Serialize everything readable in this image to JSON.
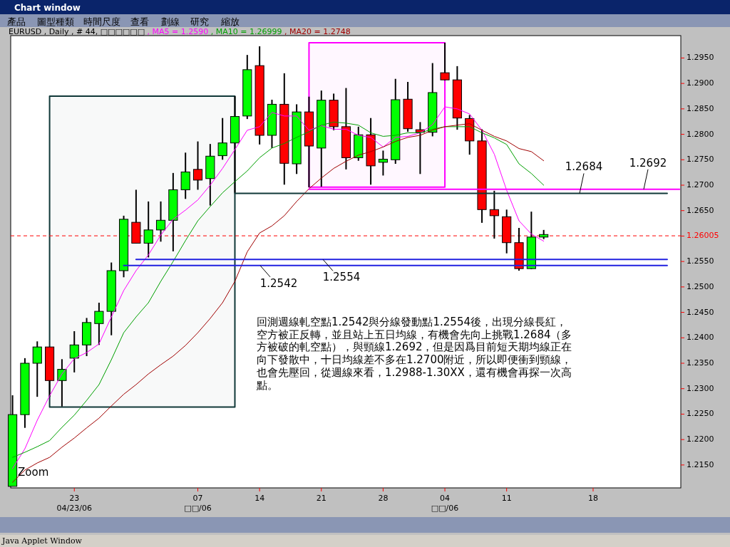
{
  "chart_data": {
    "type": "candlestick",
    "title": "EURUSD , Daily , # 44, □□□□□□",
    "legend": "top",
    "categories": [
      null,
      null,
      null,
      null,
      null,
      "23\n04/23/06",
      null,
      null,
      null,
      null,
      null,
      null,
      null,
      null,
      null,
      "07\n□□/06",
      null,
      null,
      null,
      null,
      "14",
      null,
      null,
      null,
      null,
      "21",
      null,
      null,
      null,
      null,
      "28",
      null,
      null,
      null,
      null,
      "04\n□□/06",
      null,
      null,
      null,
      null,
      "11",
      null,
      null,
      null,
      null,
      null,
      null,
      "18",
      null,
      null,
      null,
      null,
      null,
      null,
      null
    ],
    "ohlc": [
      [
        1.2108,
        1.2287,
        1.2108,
        1.2249
      ],
      [
        1.2249,
        1.236,
        1.2223,
        1.235
      ],
      [
        1.235,
        1.2393,
        1.2284,
        1.2382
      ],
      [
        1.2382,
        1.2382,
        1.2284,
        1.2316
      ],
      [
        1.2316,
        1.2358,
        1.2265,
        1.2338
      ],
      [
        1.236,
        1.2413,
        1.2332,
        1.2386
      ],
      [
        1.2386,
        1.2439,
        1.2364,
        1.243
      ],
      [
        1.2428,
        1.2469,
        1.2386,
        1.2452
      ],
      [
        1.2452,
        1.2548,
        1.2405,
        1.2532
      ],
      [
        1.2532,
        1.264,
        1.2519,
        1.2633
      ],
      [
        1.2627,
        1.2691,
        1.2586,
        1.2586
      ],
      [
        1.2586,
        1.2668,
        1.2558,
        1.2612
      ],
      [
        1.2612,
        1.2668,
        1.2589,
        1.2631
      ],
      [
        1.2631,
        1.2724,
        1.257,
        1.2691
      ],
      [
        1.2691,
        1.2764,
        1.2673,
        1.2726
      ],
      [
        1.2731,
        1.2786,
        1.2691,
        1.271
      ],
      [
        1.2713,
        1.2781,
        1.266,
        1.2757
      ],
      [
        1.2758,
        1.2832,
        1.275,
        1.2783
      ],
      [
        1.2783,
        1.2875,
        1.2685,
        1.2835
      ],
      [
        1.2836,
        1.2956,
        1.283,
        1.2927
      ],
      [
        1.2935,
        1.2973,
        1.278,
        1.2798
      ],
      [
        1.2798,
        1.2868,
        1.2773,
        1.2859
      ],
      [
        1.2859,
        1.292,
        1.2701,
        1.2743
      ],
      [
        1.2742,
        1.2859,
        1.2722,
        1.2844
      ],
      [
        1.2844,
        1.2874,
        1.2696,
        1.2777
      ],
      [
        1.2773,
        1.2886,
        1.2697,
        1.2867
      ],
      [
        1.2867,
        1.288,
        1.2808,
        1.2815
      ],
      [
        1.2815,
        1.2891,
        1.2731,
        1.2754
      ],
      [
        1.2754,
        1.2815,
        1.2748,
        1.2799
      ],
      [
        1.2799,
        1.2832,
        1.2701,
        1.2738
      ],
      [
        1.2745,
        1.2768,
        1.2719,
        1.2751
      ],
      [
        1.275,
        1.2909,
        1.2742,
        1.2868
      ],
      [
        1.2869,
        1.2903,
        1.2805,
        1.2811
      ],
      [
        1.2809,
        1.2824,
        1.2722,
        1.2804
      ],
      [
        1.2804,
        1.294,
        1.2796,
        1.2882
      ],
      [
        1.2921,
        1.298,
        1.2906,
        1.2907
      ],
      [
        1.2907,
        1.2934,
        1.2809,
        1.2832
      ],
      [
        1.2831,
        1.2838,
        1.276,
        1.2787
      ],
      [
        1.2787,
        1.281,
        1.2626,
        1.2652
      ],
      [
        1.2652,
        1.2689,
        1.2595,
        1.264
      ],
      [
        1.2638,
        1.2652,
        1.2566,
        1.2587
      ],
      [
        1.2587,
        1.2616,
        1.2532,
        1.2536
      ],
      [
        1.2536,
        1.2648,
        1.2535,
        1.2598
      ],
      [
        1.2598,
        1.2612,
        1.2594,
        1.2603
      ],
      null,
      null,
      null,
      null,
      null,
      null,
      null,
      null,
      null,
      null,
      null
    ],
    "colors": [
      "#00ff00",
      "#00ff00",
      "#00ff00",
      "#ff0000",
      "#00ff00",
      "#00ff00",
      "#00ff00",
      "#00ff00",
      "#00ff00",
      "#00ff00",
      "#ff0000",
      "#00ff00",
      "#00ff00",
      "#00ff00",
      "#00ff00",
      "#ff0000",
      "#00ff00",
      "#00ff00",
      "#00ff00",
      "#00ff00",
      "#ff0000",
      "#00ff00",
      "#ff0000",
      "#00ff00",
      "#ff0000",
      "#00ff00",
      "#ff0000",
      "#ff0000",
      "#00ff00",
      "#ff0000",
      "#00ff00",
      "#00ff00",
      "#ff0000",
      "#ff0000",
      "#00ff00",
      "#ff0000",
      "#ff0000",
      "#ff0000",
      "#ff0000",
      "#ff0000",
      "#ff0000",
      "#ff0000",
      "#00ff00",
      "#00ff00",
      null,
      null,
      null,
      null,
      null,
      null,
      null,
      null,
      null,
      null,
      null
    ],
    "series": [
      {
        "type": "line",
        "name": ", MA5 = 1.2590",
        "color": "#ff00ff",
        "values": [
          1.2143,
          1.2182,
          1.2238,
          1.2286,
          1.2329,
          1.2359,
          1.2371,
          1.2388,
          1.2441,
          1.2493,
          1.2532,
          1.2563,
          1.2602,
          1.2633,
          1.2651,
          1.2671,
          1.27,
          1.2733,
          1.277,
          1.2808,
          1.2815,
          1.2843,
          1.2836,
          1.2836,
          1.2808,
          1.2817,
          1.281,
          1.281,
          1.2798,
          1.2794,
          1.2775,
          1.2794,
          1.2796,
          1.2803,
          1.2819,
          1.2854,
          1.285,
          1.284,
          1.2808,
          1.2761,
          1.269,
          1.263,
          1.2604,
          1.259,
          null,
          null,
          null,
          null,
          null,
          null,
          null,
          null,
          null,
          null,
          null
        ]
      },
      {
        "type": "line",
        "name": ", MA10 = 1.26999",
        "color": "#00a000",
        "values": [
          1.2165,
          1.2175,
          1.2186,
          1.2198,
          1.2224,
          1.2248,
          1.2277,
          1.2308,
          1.2357,
          1.241,
          1.2441,
          1.2469,
          1.2511,
          1.255,
          1.2591,
          1.263,
          1.2658,
          1.2685,
          1.2707,
          1.2728,
          1.2754,
          1.2773,
          1.2782,
          1.2794,
          1.2805,
          1.2818,
          1.2824,
          1.2822,
          1.2818,
          1.2803,
          1.2796,
          1.2798,
          1.2803,
          1.2803,
          1.281,
          1.2815,
          1.2815,
          1.2815,
          1.2803,
          1.2793,
          1.278,
          1.2742,
          1.2723,
          1.27,
          null,
          null,
          null,
          null,
          null,
          null,
          null,
          null,
          null,
          null,
          null
        ]
      },
      {
        "type": "line",
        "name": ", MA20 = 1.2748",
        "color": "#a00000",
        "values": [
          1.2116,
          1.214,
          1.2154,
          1.2165,
          1.2185,
          1.2203,
          1.2223,
          1.2242,
          1.2266,
          1.2289,
          1.2308,
          1.2329,
          1.2347,
          1.2364,
          1.2385,
          1.241,
          1.2438,
          1.2469,
          1.2511,
          1.2569,
          1.2606,
          1.262,
          1.264,
          1.2668,
          1.2693,
          1.2714,
          1.2733,
          1.2747,
          1.2759,
          1.2766,
          1.2775,
          1.2786,
          1.2794,
          1.2798,
          1.2808,
          1.2815,
          1.2818,
          1.2821,
          1.2808,
          1.2796,
          1.2787,
          1.2772,
          1.2766,
          1.2748,
          null,
          null,
          null,
          null,
          null,
          null,
          null,
          null,
          null,
          null,
          null
        ]
      },
      {
        "type": "line",
        "color": "#2020e0",
        "values": [
          null,
          null,
          null,
          null,
          null,
          null,
          null,
          null,
          null,
          null,
          1.2554,
          1.2554,
          1.2554,
          1.2554,
          1.2554,
          1.2554,
          1.2554,
          1.2554,
          1.2554,
          1.2554,
          1.2554,
          1.2554,
          1.2554,
          1.2554,
          1.2554,
          1.2554,
          1.2554,
          1.2554,
          1.2554,
          1.2554,
          1.2554,
          1.2554,
          1.2554,
          1.2554,
          1.2554,
          1.2554,
          1.2554,
          1.2554,
          1.2554,
          1.2554,
          1.2554,
          1.2554,
          1.2554,
          1.2554,
          1.2554,
          1.2554,
          1.2554,
          1.2554,
          1.2554,
          1.2554,
          1.2554,
          1.2554,
          1.2554,
          1.2554,
          null
        ]
      },
      {
        "type": "line",
        "color": "#2020e0",
        "values": [
          null,
          null,
          null,
          null,
          null,
          null,
          null,
          null,
          null,
          1.2542,
          1.2542,
          1.2542,
          1.2542,
          1.2542,
          1.2542,
          1.2542,
          1.2542,
          1.2542,
          1.2542,
          1.2542,
          1.2542,
          1.2542,
          1.2542,
          1.2542,
          1.2542,
          1.2542,
          1.2542,
          1.2542,
          1.2542,
          1.2542,
          1.2542,
          1.2542,
          1.2542,
          1.2542,
          1.2542,
          1.2542,
          1.2542,
          1.2542,
          1.2542,
          1.2542,
          1.2542,
          1.2542,
          1.2542,
          1.2542,
          1.2542,
          1.2542,
          1.2542,
          1.2542,
          1.2542,
          1.2542,
          1.2542,
          1.2542,
          1.2542,
          1.2542,
          null
        ]
      },
      {
        "type": "line",
        "color": "#103838",
        "values": [
          null,
          null,
          null,
          null,
          null,
          null,
          null,
          null,
          null,
          null,
          null,
          null,
          null,
          null,
          null,
          null,
          null,
          null,
          1.2684,
          1.2684,
          1.2684,
          1.2684,
          1.2684,
          1.2684,
          1.2684,
          1.2684,
          1.2684,
          1.2684,
          1.2684,
          1.2684,
          1.2684,
          1.2684,
          1.2684,
          1.2684,
          1.2684,
          1.2684,
          1.2684,
          1.2684,
          1.2684,
          1.2684,
          1.2684,
          1.2684,
          1.2684,
          1.2684,
          1.2684,
          1.2684,
          1.2684,
          1.2684,
          1.2684,
          1.2684,
          1.2684,
          1.2684,
          1.2684,
          1.2684,
          null
        ]
      },
      {
        "type": "line",
        "color": "#ff00ff",
        "values": [
          null,
          null,
          null,
          null,
          null,
          null,
          null,
          null,
          null,
          null,
          null,
          null,
          null,
          null,
          null,
          null,
          null,
          null,
          null,
          null,
          null,
          null,
          null,
          null,
          1.2692,
          1.2692,
          1.2692,
          1.2692,
          1.2692,
          1.2692,
          1.2692,
          1.2692,
          1.2692,
          1.2692,
          1.2692,
          1.2692,
          1.2692,
          1.2692,
          1.2692,
          1.2692,
          1.2692,
          1.2692,
          1.2692,
          1.2692,
          1.2692,
          1.2692,
          1.2692,
          1.2692,
          1.2692,
          1.2692,
          1.2692,
          1.2692,
          1.2692,
          1.2692,
          1.2692
        ]
      },
      {
        "type": "line",
        "color": "#103838",
        "values": [
          null,
          null,
          null,
          null,
          null,
          null,
          null,
          null,
          null,
          null,
          null,
          null,
          null,
          null,
          null,
          null,
          null,
          null,
          null,
          null,
          null,
          null,
          null,
          null,
          null,
          null,
          null,
          null,
          null,
          null,
          null,
          null,
          null,
          null,
          null,
          null,
          null,
          null,
          null,
          null,
          null,
          null,
          null,
          null,
          null,
          null,
          null,
          null,
          null,
          null,
          null,
          null,
          null,
          null,
          null
        ],
        "lower": [
          null,
          null,
          null,
          1.2264,
          1.2264,
          1.2264,
          1.2264,
          1.2264,
          1.2264,
          1.2264,
          1.2264,
          1.2264,
          1.2264,
          1.2264,
          1.2264,
          1.2264,
          1.2264,
          1.2264,
          1.2264,
          null,
          null,
          null,
          null,
          null,
          null,
          null,
          null,
          null,
          null,
          null,
          null,
          null,
          null,
          null,
          null,
          null,
          null,
          null,
          null,
          null,
          null,
          null,
          null,
          null,
          null,
          null,
          null,
          null,
          null,
          null,
          null,
          null,
          null,
          null,
          null
        ],
        "upper": [
          null,
          null,
          null,
          1.2875,
          1.2875,
          1.2875,
          1.2875,
          1.2875,
          1.2875,
          1.2875,
          1.2875,
          1.2875,
          1.2875,
          1.2875,
          1.2875,
          1.2875,
          1.2875,
          1.2875,
          1.2875,
          null,
          null,
          null,
          null,
          null,
          null,
          null,
          null,
          null,
          null,
          null,
          null,
          null,
          null,
          null,
          null,
          null,
          null,
          null,
          null,
          null,
          null,
          null,
          null,
          null,
          null,
          null,
          null,
          null,
          null,
          null,
          null,
          null,
          null,
          null,
          null
        ]
      },
      {
        "type": "line",
        "color": "#ff00ff",
        "values": [
          null,
          null,
          null,
          null,
          null,
          null,
          null,
          null,
          null,
          null,
          null,
          null,
          null,
          null,
          null,
          null,
          null,
          null,
          null,
          null,
          null,
          null,
          null,
          null,
          null,
          null,
          null,
          null,
          null,
          null,
          null,
          null,
          null,
          null,
          null,
          null,
          null,
          null,
          null,
          null,
          null,
          null,
          null,
          null,
          null,
          null,
          null,
          null,
          null,
          null,
          null,
          null,
          null,
          null,
          null
        ],
        "lower": [
          null,
          null,
          null,
          null,
          null,
          null,
          null,
          null,
          null,
          null,
          null,
          null,
          null,
          null,
          null,
          null,
          null,
          null,
          null,
          null,
          null,
          null,
          null,
          null,
          1.2696,
          1.2696,
          1.2696,
          1.2696,
          1.2696,
          1.2696,
          1.2696,
          1.2696,
          1.2696,
          1.2696,
          1.2696,
          1.2696,
          null,
          null,
          null,
          null,
          null,
          null,
          null,
          null,
          null,
          null,
          null,
          null,
          null,
          null,
          null,
          null,
          null,
          null,
          null
        ],
        "upper": [
          null,
          null,
          null,
          null,
          null,
          null,
          null,
          null,
          null,
          null,
          null,
          null,
          null,
          null,
          null,
          null,
          null,
          null,
          null,
          null,
          null,
          null,
          null,
          null,
          1.298,
          1.298,
          1.298,
          1.298,
          1.298,
          1.298,
          1.298,
          1.298,
          1.298,
          1.298,
          1.298,
          1.298,
          null,
          null,
          null,
          null,
          null,
          null,
          null,
          null,
          null,
          null,
          null,
          null,
          null,
          null,
          null,
          null,
          null,
          null,
          null
        ]
      }
    ],
    "ylim": [
      1.2105,
      1.2994
    ],
    "yticks": [
      {
        "value": 1.215,
        "label": "1.2150"
      },
      {
        "value": 1.22,
        "label": "1.2200"
      },
      {
        "value": 1.225,
        "label": "1.2250"
      },
      {
        "value": 1.23,
        "label": "1.2300"
      },
      {
        "value": 1.235,
        "label": "1.2350"
      },
      {
        "value": 1.24,
        "label": "1.2400"
      },
      {
        "value": 1.245,
        "label": "1.2450"
      },
      {
        "value": 1.25,
        "label": "1.2500"
      },
      {
        "value": 1.255,
        "label": "1.2550"
      },
      {
        "value": 1.26,
        "label": null
      },
      {
        "value": 1.265,
        "label": "1.2650"
      },
      {
        "value": 1.27,
        "label": "1.2700"
      },
      {
        "value": 1.275,
        "label": "1.2750"
      },
      {
        "value": 1.28,
        "label": "1.2800"
      },
      {
        "value": 1.285,
        "label": "1.2850"
      },
      {
        "value": 1.29,
        "label": "1.2900"
      },
      {
        "value": 1.295,
        "label": "1.2950"
      }
    ],
    "ref_lines": [
      {
        "axis": "y",
        "value": 1.26005,
        "label": "1.26005",
        "color": "#ff0000",
        "line_style": "dashed"
      }
    ],
    "annotations": [
      "Chart window",
      "產品",
      "圖型種類",
      "時間尺度",
      "查看",
      "劃線",
      "研究",
      "縮放",
      "Zoom",
      "回測週線軋空點1.2542與分線發動點1.2554後，出現分線長紅，空方被正反轉，並且站上五日均線，有機會先向上挑戰1.2684（多方被破的軋空點），與頸線1.2692，但是因爲目前短天期均線正在向下發散中，十日均線差不多在1.2700附近，所以即便衝到頸線，也會先壓回，從週線來看，1.2988-1.30XX，還有機會再探一次高點。",
      "Java Applet Window",
      {
        "text": "1.2542",
        "y": 1.2542
      },
      {
        "text": "1.2554",
        "y": 1.2554
      },
      {
        "text": "1.2684",
        "y": 1.2684
      },
      {
        "text": "1.2692",
        "y": 1.2692
      }
    ]
  }
}
